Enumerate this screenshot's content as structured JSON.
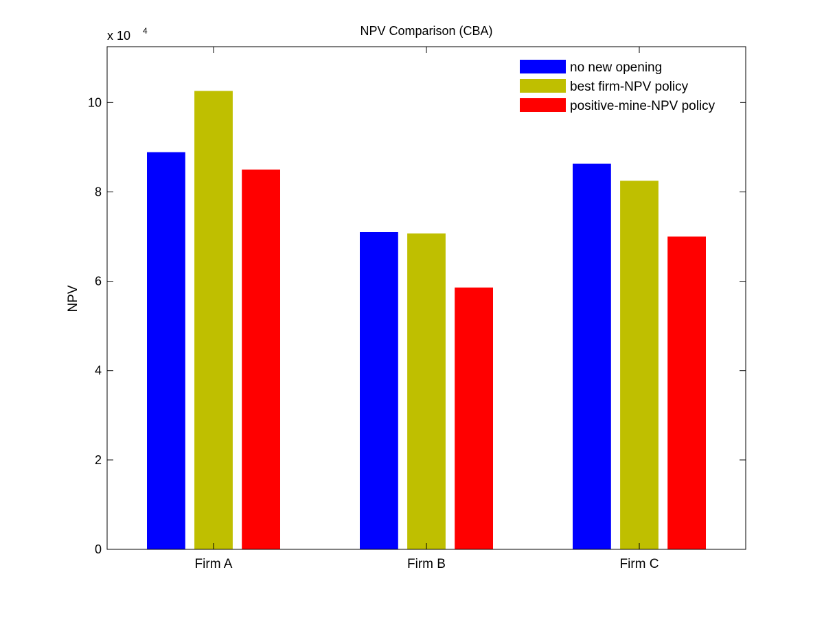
{
  "chart_data": {
    "type": "bar",
    "title": "NPV Comparison (CBA)",
    "xlabel": "",
    "ylabel": "NPV",
    "y_exponent": {
      "base": "x 10",
      "power": "4"
    },
    "categories": [
      "Firm A",
      "Firm B",
      "Firm C"
    ],
    "series": [
      {
        "name": "no new opening",
        "color": "#0000ff",
        "values": [
          8.89,
          7.1,
          8.63
        ]
      },
      {
        "name": "best firm-NPV policy",
        "color": "#bfbf00",
        "values": [
          10.26,
          7.07,
          8.25
        ]
      },
      {
        "name": "positive-mine-NPV policy",
        "color": "#ff0000",
        "values": [
          8.5,
          5.86,
          7.0
        ]
      }
    ],
    "ylim": [
      0,
      11.25
    ],
    "yticks": [
      "0",
      "2",
      "4",
      "6",
      "8",
      "10"
    ],
    "ytick_values": [
      0,
      2,
      4,
      6,
      8,
      10
    ],
    "grid": false,
    "legend_position": "top-right"
  }
}
